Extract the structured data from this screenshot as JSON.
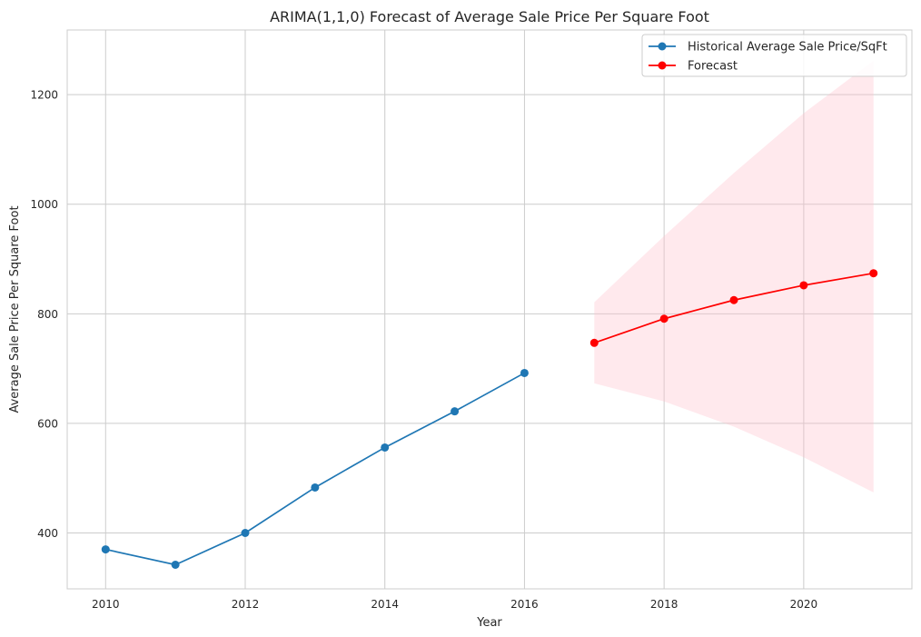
{
  "chart_data": {
    "type": "line",
    "title": "ARIMA(1,1,0) Forecast of Average Sale Price Per Square Foot",
    "xlabel": "Year",
    "ylabel": "Average Sale Price Per Square Foot",
    "xlim": [
      2009.45,
      2021.55
    ],
    "ylim": [
      298,
      1318
    ],
    "x_ticks": [
      2010,
      2012,
      2014,
      2016,
      2018,
      2020
    ],
    "y_ticks": [
      400,
      600,
      800,
      1000,
      1200
    ],
    "grid": true,
    "legend_position": "top-right",
    "series": [
      {
        "name": "Historical Average Sale Price/SqFt",
        "color": "#1f77b4",
        "marker": "circle",
        "x": [
          2010,
          2011,
          2012,
          2013,
          2014,
          2015,
          2016
        ],
        "y": [
          370,
          342,
          400,
          483,
          556,
          622,
          692
        ]
      },
      {
        "name": "Forecast",
        "color": "#ff0000",
        "marker": "circle",
        "x": [
          2017,
          2018,
          2019,
          2020,
          2021
        ],
        "y": [
          747,
          791,
          825,
          852,
          874
        ]
      }
    ],
    "confidence_band": {
      "series": "Forecast",
      "color": "#ffc0cb",
      "opacity": 0.35,
      "x": [
        2017,
        2018,
        2019,
        2020,
        2021
      ],
      "lower": [
        673,
        640,
        594,
        538,
        474
      ],
      "upper": [
        821,
        942,
        1057,
        1166,
        1262
      ]
    }
  }
}
